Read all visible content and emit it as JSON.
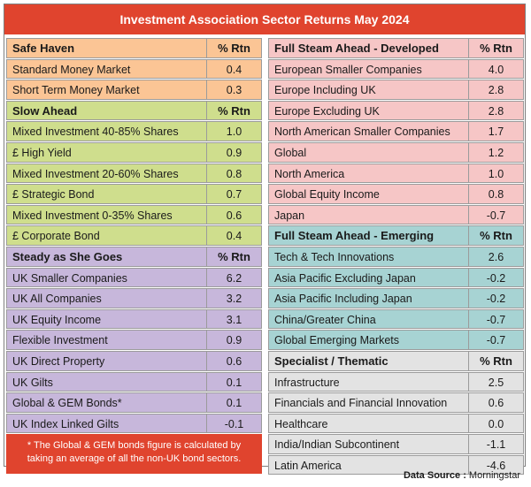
{
  "title": "Investment Association Sector Returns May 2024",
  "rtn_label": "% Rtn",
  "left_sections": [
    {
      "heading": "Safe Haven",
      "color": "#fbc595",
      "rows": [
        {
          "name": "Standard Money Market",
          "value": "0.4"
        },
        {
          "name": "Short Term Money Market",
          "value": "0.3"
        }
      ]
    },
    {
      "heading": "Slow Ahead",
      "color": "#cfde8d",
      "rows": [
        {
          "name": "Mixed Investment 40-85% Shares",
          "value": "1.0"
        },
        {
          "name": "£ High Yield",
          "value": "0.9"
        },
        {
          "name": "Mixed Investment 20-60% Shares",
          "value": "0.8"
        },
        {
          "name": "£ Strategic Bond",
          "value": "0.7"
        },
        {
          "name": "Mixed Investment 0-35% Shares",
          "value": "0.6"
        },
        {
          "name": "£ Corporate Bond",
          "value": "0.4"
        }
      ]
    },
    {
      "heading": "Steady as She Goes",
      "color": "#c7b7db",
      "rows": [
        {
          "name": "UK Smaller Companies",
          "value": "6.2"
        },
        {
          "name": "UK All Companies",
          "value": "3.2"
        },
        {
          "name": "UK Equity Income",
          "value": "3.1"
        },
        {
          "name": "Flexible Investment",
          "value": "0.9"
        },
        {
          "name": "UK Direct Property",
          "value": "0.6"
        },
        {
          "name": "UK Gilts",
          "value": "0.1"
        },
        {
          "name": "Global & GEM Bonds*",
          "value": "0.1"
        },
        {
          "name": "UK Index Linked Gilts",
          "value": "-0.1"
        }
      ]
    }
  ],
  "right_sections": [
    {
      "heading": "Full Steam Ahead - Developed",
      "color": "#f6c6c6",
      "rows": [
        {
          "name": "European Smaller Companies",
          "value": "4.0"
        },
        {
          "name": "Europe Including UK",
          "value": "2.8"
        },
        {
          "name": "Europe Excluding UK",
          "value": "2.8"
        },
        {
          "name": "North American Smaller Companies",
          "value": "1.7"
        },
        {
          "name": "Global",
          "value": "1.2"
        },
        {
          "name": "North America",
          "value": "1.0"
        },
        {
          "name": "Global Equity Income",
          "value": "0.8"
        },
        {
          "name": "Japan",
          "value": "-0.7"
        }
      ]
    },
    {
      "heading": "Full Steam Ahead - Emerging",
      "color": "#a7d3d3",
      "rows": [
        {
          "name": "Tech & Tech Innovations",
          "value": "2.6"
        },
        {
          "name": "Asia Pacific Excluding Japan",
          "value": "-0.2"
        },
        {
          "name": "Asia Pacific Including Japan",
          "value": "-0.2"
        },
        {
          "name": "China/Greater China",
          "value": "-0.7"
        },
        {
          "name": "Global Emerging Markets",
          "value": "-0.7"
        }
      ]
    },
    {
      "heading": "Specialist / Thematic",
      "color": "#e3e3e3",
      "rows": [
        {
          "name": "Infrastructure",
          "value": "2.5"
        },
        {
          "name": "Financials and Financial Innovation",
          "value": "0.6"
        },
        {
          "name": "Healthcare",
          "value": "0.0"
        },
        {
          "name": "India/Indian Subcontinent",
          "value": "-1.1"
        },
        {
          "name": "Latin America",
          "value": "-4.6"
        }
      ]
    }
  ],
  "footnote": "* The Global & GEM bonds figure is calculated by taking an average of all the non-UK bond sectors.",
  "source_label": "Data Source : ",
  "source_name": "Morningstar"
}
